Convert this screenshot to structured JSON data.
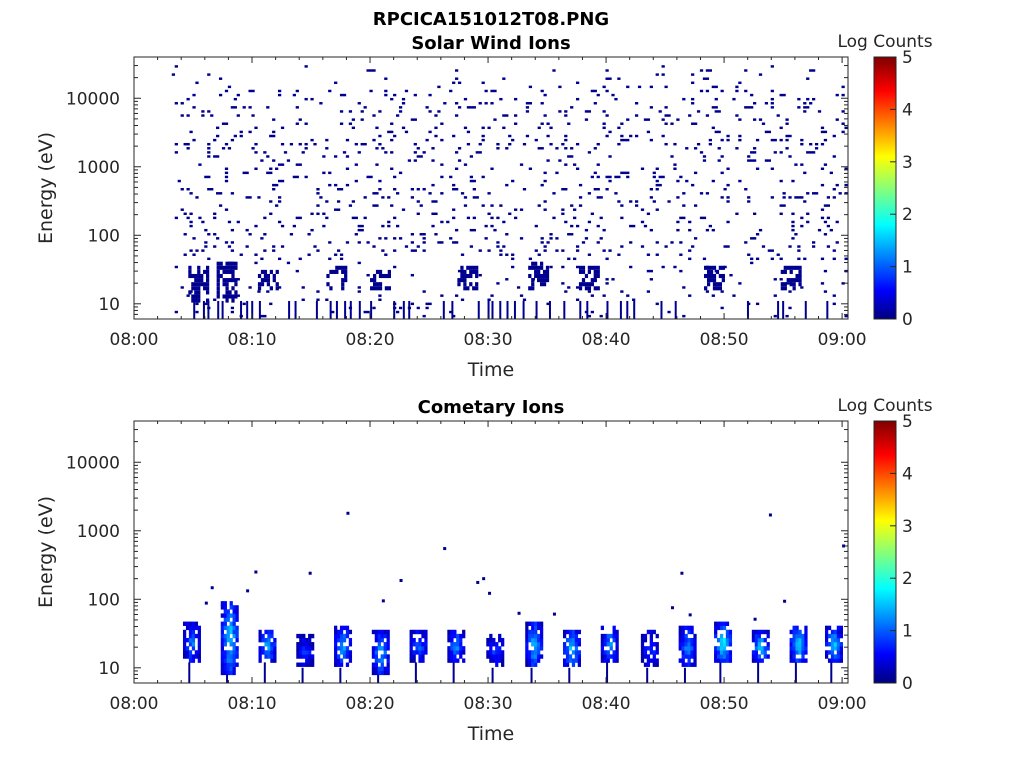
{
  "figure_title": "RPCICA151012T08.PNG",
  "chart_data": [
    {
      "type": "heatmap",
      "title": "Solar Wind Ions",
      "xlabel": "Time",
      "ylabel": "Energy (eV)",
      "x_ticks": [
        "08:00",
        "08:10",
        "08:20",
        "08:30",
        "08:40",
        "08:50",
        "09:00"
      ],
      "xlim_minutes": [
        0,
        60.5
      ],
      "y_scale": "log",
      "y_ticks": [
        10,
        100,
        1000,
        10000
      ],
      "ylim": [
        6,
        40000
      ],
      "colorbar": {
        "label": "Log Counts",
        "range": [
          0,
          5
        ],
        "ticks": [
          0,
          1,
          2,
          3,
          4,
          5
        ],
        "colormap": "jet"
      },
      "data_start_minutes": 3.2,
      "data_end_minutes": 60.3,
      "level_typical": 0.1,
      "description_bursts_low_energy": [
        {
          "t": 5.4,
          "e": [
            10,
            35
          ]
        },
        {
          "t": 7.8,
          "e": [
            10,
            40
          ]
        },
        {
          "t": 11.3,
          "e": [
            15,
            30
          ]
        },
        {
          "t": 17.1,
          "e": [
            15,
            35
          ]
        },
        {
          "t": 20.8,
          "e": [
            15,
            30
          ]
        },
        {
          "t": 28.2,
          "e": [
            15,
            35
          ]
        },
        {
          "t": 34.2,
          "e": [
            15,
            40
          ]
        },
        {
          "t": 38.5,
          "e": [
            15,
            35
          ]
        },
        {
          "t": 49.1,
          "e": [
            15,
            35
          ]
        },
        {
          "t": 55.6,
          "e": [
            15,
            35
          ]
        }
      ]
    },
    {
      "type": "heatmap",
      "title": "Cometary Ions",
      "xlabel": "Time",
      "ylabel": "Energy (eV)",
      "x_ticks": [
        "08:00",
        "08:10",
        "08:20",
        "08:30",
        "08:40",
        "08:50",
        "09:00"
      ],
      "xlim_minutes": [
        0,
        60.5
      ],
      "y_scale": "log",
      "y_ticks": [
        10,
        100,
        1000,
        10000
      ],
      "ylim": [
        6,
        40000
      ],
      "colorbar": {
        "label": "Log Counts",
        "range": [
          0,
          5
        ],
        "ticks": [
          0,
          1,
          2,
          3,
          4,
          5
        ],
        "colormap": "jet"
      },
      "bursts": [
        {
          "t": 4.8,
          "e": [
            12,
            45
          ],
          "peak": 1.3
        },
        {
          "t": 8.0,
          "e": [
            8,
            100
          ],
          "peak": 1.8
        },
        {
          "t": 11.2,
          "e": [
            12,
            35
          ],
          "peak": 1.6
        },
        {
          "t": 14.4,
          "e": [
            10,
            30
          ],
          "peak": 0.9
        },
        {
          "t": 17.6,
          "e": [
            10,
            40
          ],
          "peak": 1.5
        },
        {
          "t": 20.8,
          "e": [
            8,
            35
          ],
          "peak": 1.5
        },
        {
          "t": 24.0,
          "e": [
            12,
            35
          ],
          "peak": 1.2
        },
        {
          "t": 27.2,
          "e": [
            12,
            35
          ],
          "peak": 1.4
        },
        {
          "t": 30.5,
          "e": [
            10,
            30
          ],
          "peak": 0.9
        },
        {
          "t": 33.8,
          "e": [
            10,
            45
          ],
          "peak": 1.7
        },
        {
          "t": 37.0,
          "e": [
            10,
            35
          ],
          "peak": 1.8
        },
        {
          "t": 40.2,
          "e": [
            12,
            40
          ],
          "peak": 1.4
        },
        {
          "t": 43.6,
          "e": [
            10,
            35
          ],
          "peak": 1.0
        },
        {
          "t": 46.8,
          "e": [
            10,
            40
          ],
          "peak": 1.4
        },
        {
          "t": 49.8,
          "e": [
            12,
            45
          ],
          "peak": 2.0
        },
        {
          "t": 53.0,
          "e": [
            12,
            35
          ],
          "peak": 1.7
        },
        {
          "t": 56.2,
          "e": [
            12,
            40
          ],
          "peak": 1.9
        },
        {
          "t": 59.2,
          "e": [
            12,
            40
          ],
          "peak": 1.7
        }
      ],
      "isolated_points": [
        {
          "t": 18.0,
          "e": 1800
        },
        {
          "t": 26.2,
          "e": 550
        },
        {
          "t": 53.8,
          "e": 1700
        },
        {
          "t": 60.0,
          "e": 600
        },
        {
          "t": 10.2,
          "e": 250
        },
        {
          "t": 14.8,
          "e": 240
        },
        {
          "t": 46.3,
          "e": 240
        },
        {
          "t": 29.5,
          "e": 200
        }
      ]
    }
  ]
}
